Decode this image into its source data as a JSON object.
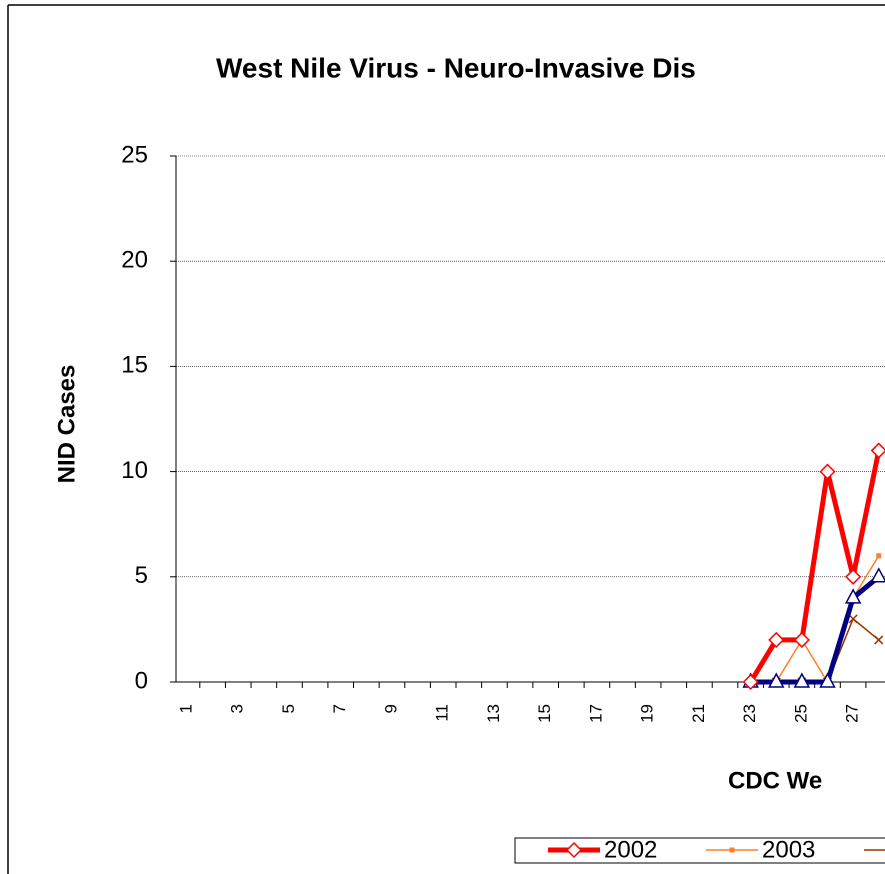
{
  "chart_data": {
    "type": "line",
    "title": "West Nile Virus - Neuro-Invasive Dis",
    "y_label": "NID Cases",
    "x_label": "CDC We",
    "categories": [
      "1",
      null,
      "3",
      null,
      "5",
      null,
      "7",
      null,
      "9",
      null,
      "11",
      null,
      "13",
      null,
      "15",
      null,
      "17",
      null,
      "19",
      null,
      "21",
      null,
      "23",
      null,
      "25",
      null,
      "27",
      null
    ],
    "series": [
      {
        "name": "2002",
        "color": "#ff0000",
        "marker": "diamond",
        "width": 5,
        "values": [
          null,
          null,
          null,
          null,
          null,
          null,
          null,
          null,
          null,
          null,
          null,
          null,
          null,
          null,
          null,
          null,
          null,
          null,
          null,
          null,
          null,
          null,
          0,
          2,
          2,
          10,
          5,
          11
        ]
      },
      {
        "name": "2003",
        "color": "#ff7f27",
        "marker": "square",
        "width": 1.5,
        "values": [
          null,
          null,
          null,
          null,
          null,
          null,
          null,
          null,
          null,
          null,
          null,
          null,
          null,
          null,
          null,
          null,
          null,
          null,
          null,
          null,
          null,
          null,
          0,
          0,
          2,
          0,
          4,
          6
        ]
      },
      {
        "color": "#993300",
        "marker": "x",
        "width": 1.5,
        "values": [
          null,
          null,
          null,
          null,
          null,
          null,
          null,
          null,
          null,
          null,
          null,
          null,
          null,
          null,
          null,
          null,
          null,
          null,
          null,
          null,
          null,
          null,
          0,
          0,
          0,
          0,
          3,
          2
        ]
      },
      {
        "color": "#000080",
        "marker": "triangle",
        "width": 5,
        "values": [
          null,
          null,
          null,
          null,
          null,
          null,
          null,
          null,
          null,
          null,
          null,
          null,
          null,
          null,
          null,
          null,
          null,
          null,
          null,
          null,
          null,
          null,
          0,
          0,
          0,
          0,
          4,
          5
        ]
      }
    ],
    "ylim": [
      0,
      25
    ],
    "yticks": [
      0,
      5,
      10,
      15,
      20,
      25
    ],
    "grid": true
  }
}
